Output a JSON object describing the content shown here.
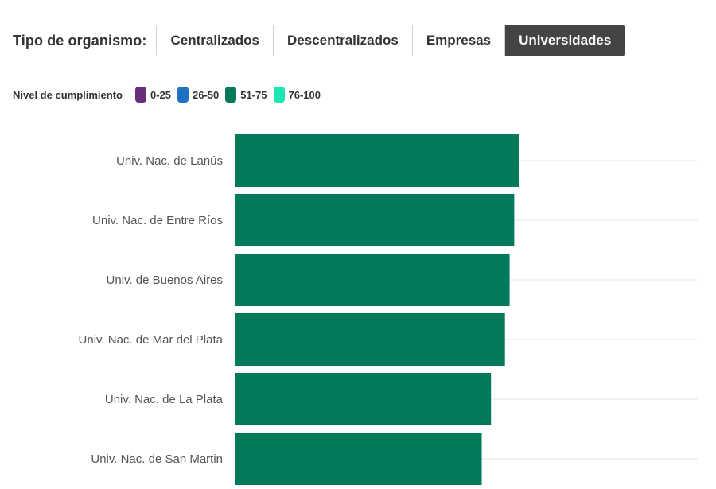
{
  "filter": {
    "label": "Tipo de organismo:",
    "options": [
      "Centralizados",
      "Descentralizados",
      "Empresas",
      "Universidades"
    ],
    "selected": "Universidades"
  },
  "legend": {
    "title": "Nivel de cumplimiento",
    "items": [
      {
        "label": "0-25",
        "color": "#6b2f7a"
      },
      {
        "label": "26-50",
        "color": "#1f6fc5"
      },
      {
        "label": "51-75",
        "color": "#007a5a"
      },
      {
        "label": "76-100",
        "color": "#1ee6b2"
      }
    ]
  },
  "chart_data": {
    "type": "bar",
    "orientation": "horizontal",
    "categories": [
      "Univ. Nac. de Lanús",
      "Univ. Nac. de Entre Ríos",
      "Univ. de Buenos Aires",
      "Univ. Nac. de Mar del Plata",
      "Univ. Nac. de La Plata",
      "Univ. Nac. de San Martin"
    ],
    "values": [
      61,
      60,
      59,
      58,
      55,
      53
    ],
    "xlim": [
      0,
      100
    ],
    "bar_color": "#007a5a",
    "grid": true,
    "legend_position": "top-left"
  }
}
